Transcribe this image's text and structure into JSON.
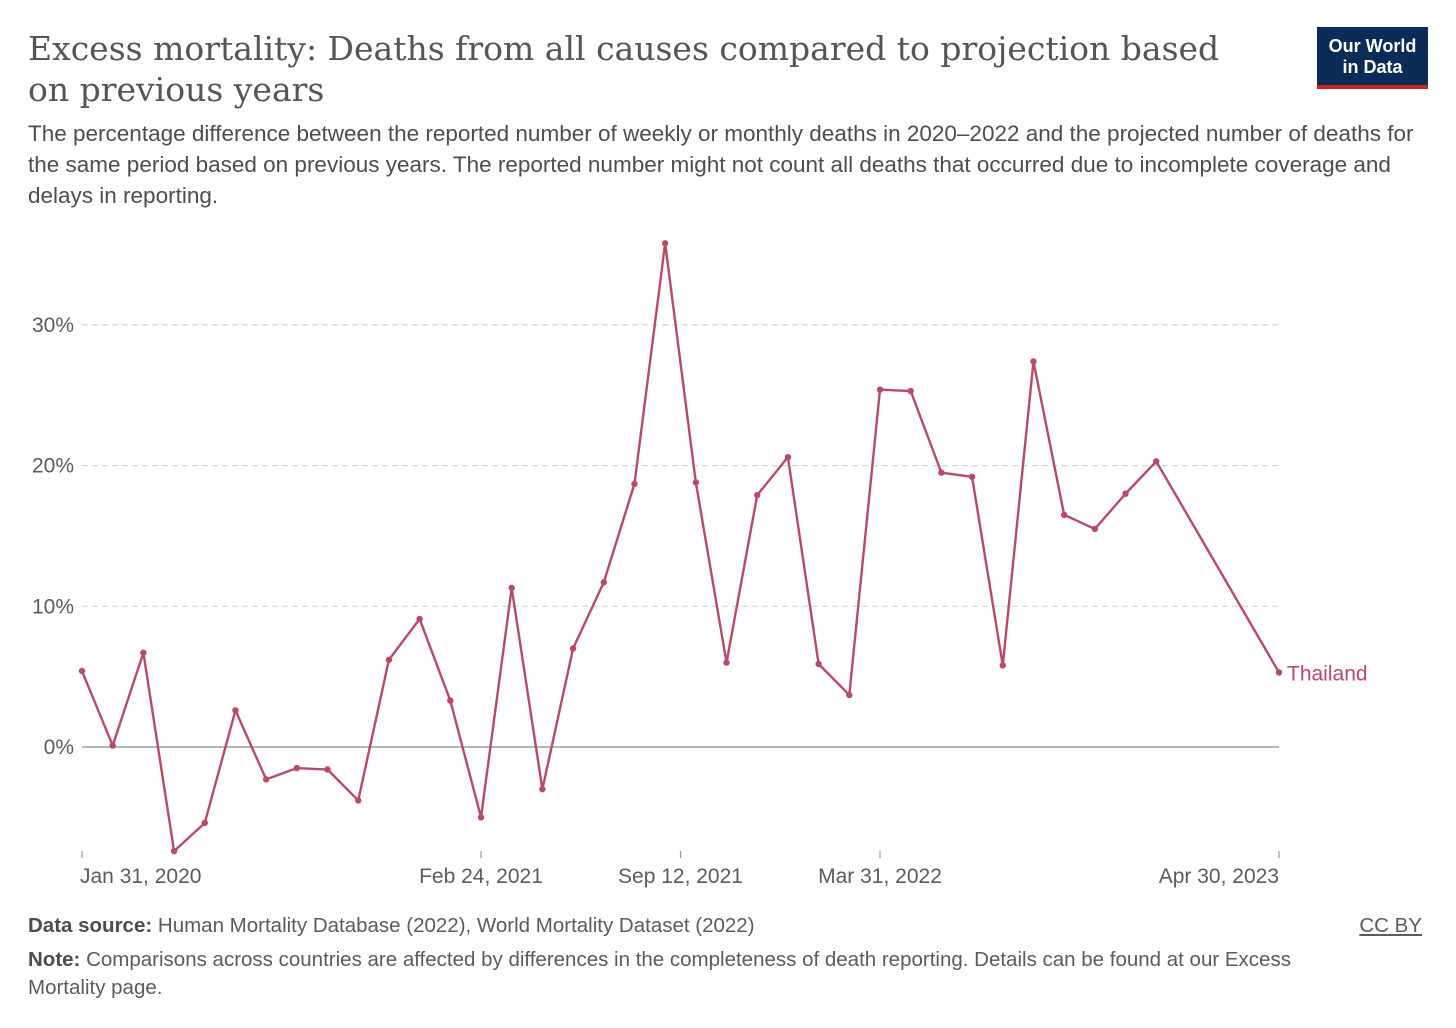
{
  "header": {
    "title": "Excess mortality: Deaths from all causes compared to projection based on previous years",
    "subtitle": "The percentage difference between the reported number of weekly or monthly deaths in 2020–2022 and the projected number of deaths for the same period based on previous years. The reported number might not count all deaths that occurred due to incomplete coverage and delays in reporting.",
    "logo_line1": "Our World",
    "logo_line2": "in Data"
  },
  "footer": {
    "source_label": "Data source:",
    "source_text": "Human Mortality Database (2022), World Mortality Dataset (2022)",
    "note_label": "Note:",
    "note_text": "Comparisons across countries are affected by differences in the completeness of death reporting. Details can be found at our Excess Mortality page.",
    "license": "CC BY"
  },
  "colors": {
    "series": "#b84b63",
    "grid": "#d4d4d4",
    "zero_line": "#8c8c8c",
    "text": "#5b5b5b"
  },
  "chart_data": {
    "type": "line",
    "y_ticks": [
      0,
      10,
      20,
      30
    ],
    "y_tick_labels": [
      "0%",
      "10%",
      "20%",
      "30%"
    ],
    "ylim": [
      -7.5,
      36
    ],
    "x_tick_labels": [
      "Jan 31, 2020",
      "Feb 24, 2021",
      "Sep 12, 2021",
      "Mar 31, 2022",
      "Apr 30, 2023"
    ],
    "x_tick_index": [
      0,
      13,
      19.5,
      26,
      39
    ],
    "grid": true,
    "series": [
      {
        "name": "Thailand",
        "values": [
          5.4,
          0.1,
          6.7,
          -7.4,
          -5.4,
          2.6,
          -2.3,
          -1.5,
          -1.6,
          -3.8,
          6.2,
          9.1,
          3.3,
          -5.0,
          11.3,
          -3.0,
          7.0,
          11.7,
          18.7,
          35.8,
          18.8,
          6.0,
          17.9,
          20.6,
          5.9,
          3.7,
          25.4,
          25.3,
          19.5,
          19.2,
          5.8,
          27.4,
          16.5,
          15.5,
          18.0,
          20.3,
          5.3
        ]
      }
    ],
    "point_index": [
      0,
      1,
      2,
      3,
      4,
      5,
      6,
      7,
      8,
      9,
      10,
      11,
      12,
      13,
      14,
      15,
      16,
      17,
      18,
      19,
      20,
      21,
      22,
      23,
      24,
      25,
      26,
      27,
      28,
      29,
      30,
      31,
      32,
      33,
      34,
      35,
      39
    ]
  }
}
